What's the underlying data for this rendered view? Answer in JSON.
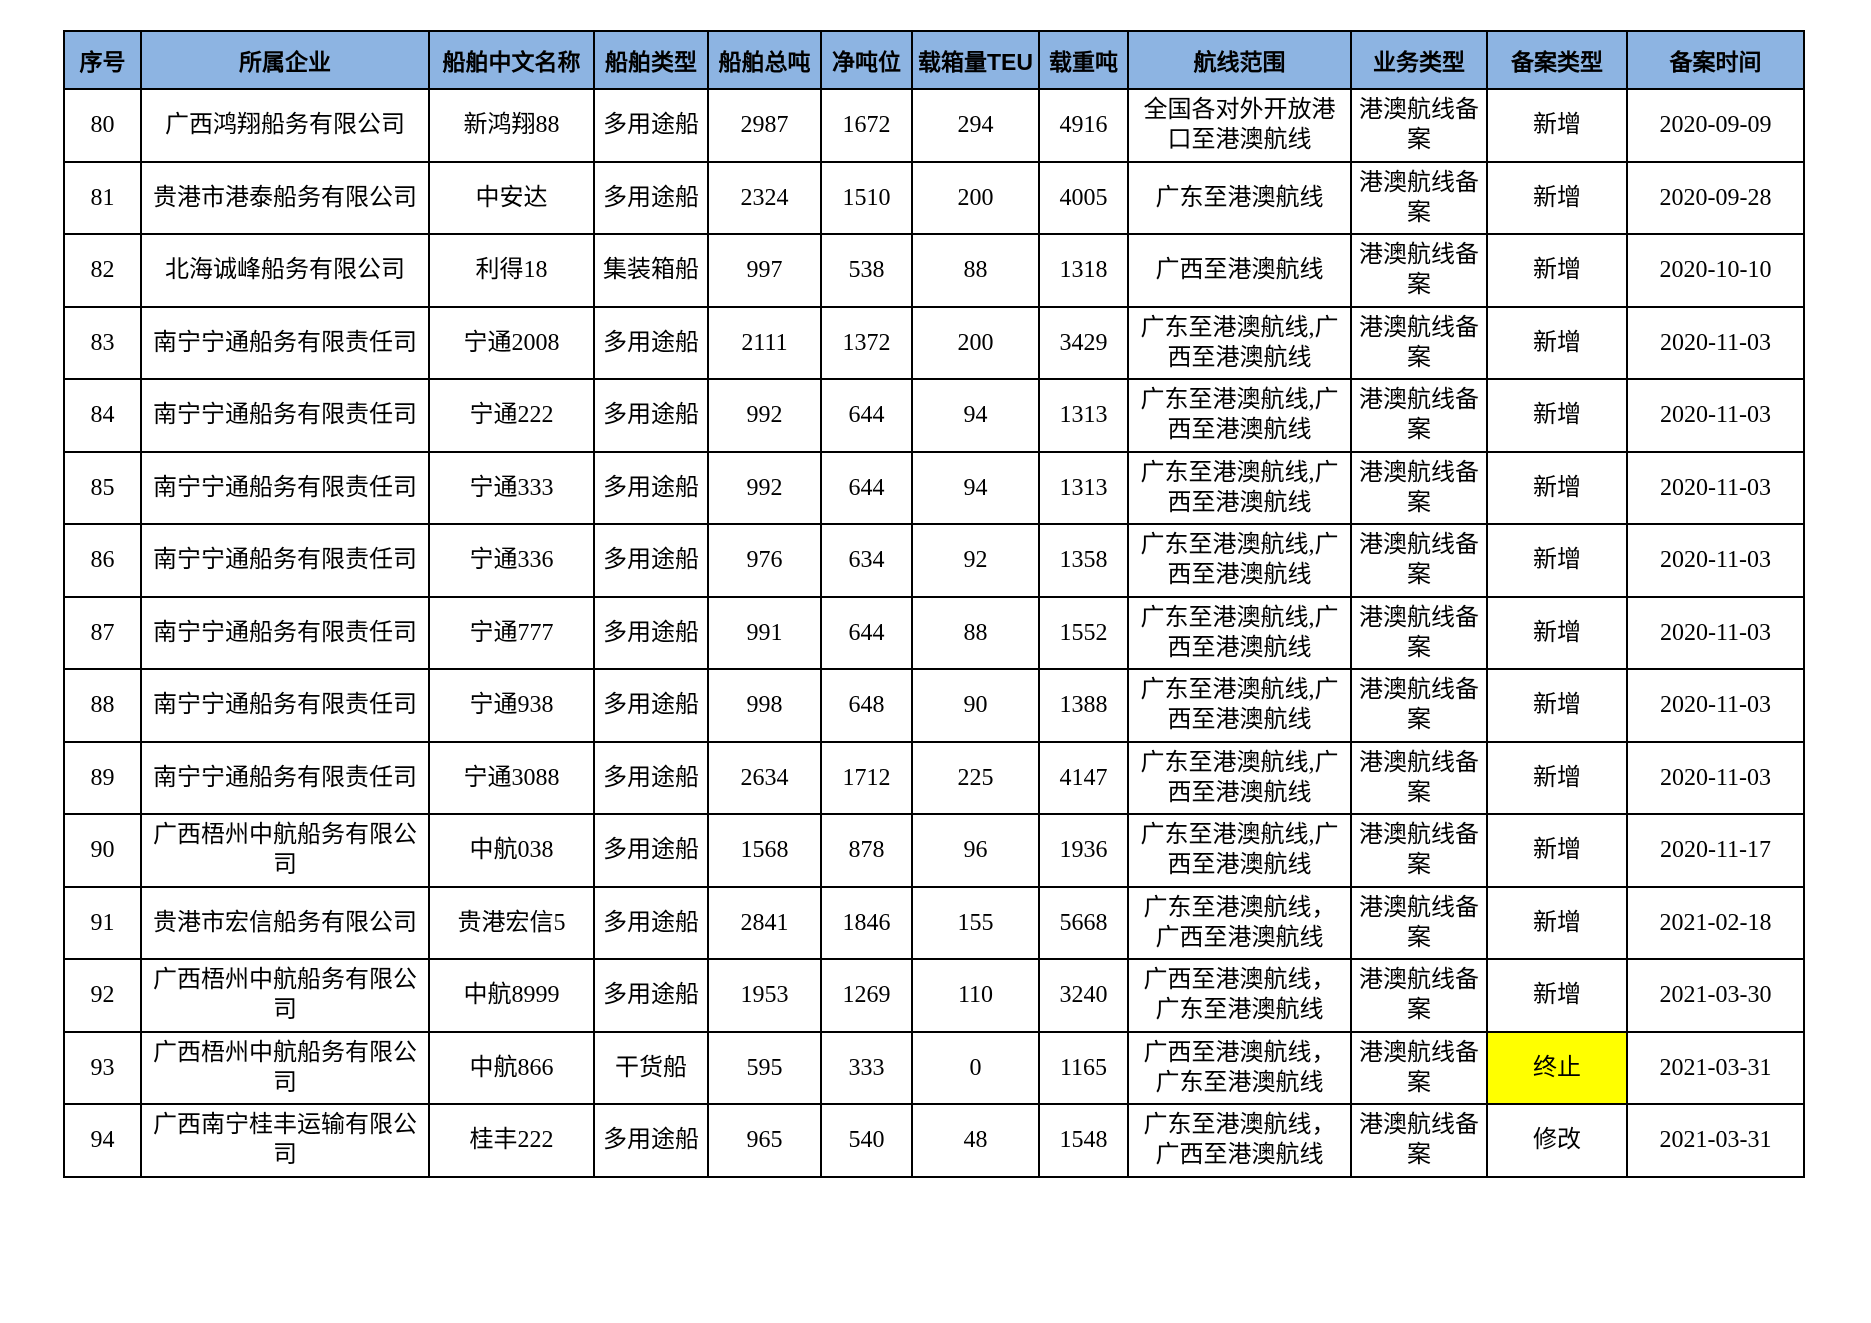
{
  "colors": {
    "header_bg": "#8DB4E2",
    "grid_line": "#000000",
    "highlight": "#FFFF00",
    "page_bg": "#FFFFFF"
  },
  "table": {
    "columns": [
      {
        "key": "seq",
        "label": "序号"
      },
      {
        "key": "company",
        "label": "所属企业"
      },
      {
        "key": "ship_name",
        "label": "船舶中文名称"
      },
      {
        "key": "ship_type",
        "label": "船舶类型"
      },
      {
        "key": "gross_tonnage",
        "label": "船舶总吨"
      },
      {
        "key": "net_tonnage",
        "label": "净吨位"
      },
      {
        "key": "teu",
        "label": "载箱量TEU"
      },
      {
        "key": "dwt",
        "label": "载重吨"
      },
      {
        "key": "route",
        "label": "航线范围"
      },
      {
        "key": "business_type",
        "label": "业务类型"
      },
      {
        "key": "filing_type",
        "label": "备案类型"
      },
      {
        "key": "filing_date",
        "label": "备案时间"
      }
    ],
    "rows": [
      {
        "seq": "80",
        "company": "广西鸿翔船务有限公司",
        "ship_name": "新鸿翔88",
        "ship_type": "多用途船",
        "gross_tonnage": "2987",
        "net_tonnage": "1672",
        "teu": "294",
        "dwt": "4916",
        "route": "全国各对外开放港\n口至港澳航线",
        "business_type": "港澳航线备案",
        "filing_type": "新增",
        "filing_type_highlight": false,
        "filing_date": "2020-09-09"
      },
      {
        "seq": "81",
        "company": "贵港市港泰船务有限公司",
        "ship_name": "中安达",
        "ship_type": "多用途船",
        "gross_tonnage": "2324",
        "net_tonnage": "1510",
        "teu": "200",
        "dwt": "4005",
        "route": "广东至港澳航线",
        "business_type": "港澳航线备案",
        "filing_type": "新增",
        "filing_type_highlight": false,
        "filing_date": "2020-09-28"
      },
      {
        "seq": "82",
        "company": "北海诚峰船务有限公司",
        "ship_name": "利得18",
        "ship_type": "集装箱船",
        "gross_tonnage": "997",
        "net_tonnage": "538",
        "teu": "88",
        "dwt": "1318",
        "route": "广西至港澳航线",
        "business_type": "港澳航线备案",
        "filing_type": "新增",
        "filing_type_highlight": false,
        "filing_date": "2020-10-10"
      },
      {
        "seq": "83",
        "company": "南宁宁通船务有限责任司",
        "ship_name": "宁通2008",
        "ship_type": "多用途船",
        "gross_tonnage": "2111",
        "net_tonnage": "1372",
        "teu": "200",
        "dwt": "3429",
        "route": "广东至港澳航线,广\n西至港澳航线",
        "business_type": "港澳航线备案",
        "filing_type": "新增",
        "filing_type_highlight": false,
        "filing_date": "2020-11-03"
      },
      {
        "seq": "84",
        "company": "南宁宁通船务有限责任司",
        "ship_name": "宁通222",
        "ship_type": "多用途船",
        "gross_tonnage": "992",
        "net_tonnage": "644",
        "teu": "94",
        "dwt": "1313",
        "route": "广东至港澳航线,广\n西至港澳航线",
        "business_type": "港澳航线备案",
        "filing_type": "新增",
        "filing_type_highlight": false,
        "filing_date": "2020-11-03"
      },
      {
        "seq": "85",
        "company": "南宁宁通船务有限责任司",
        "ship_name": "宁通333",
        "ship_type": "多用途船",
        "gross_tonnage": "992",
        "net_tonnage": "644",
        "teu": "94",
        "dwt": "1313",
        "route": "广东至港澳航线,广\n西至港澳航线",
        "business_type": "港澳航线备案",
        "filing_type": "新增",
        "filing_type_highlight": false,
        "filing_date": "2020-11-03"
      },
      {
        "seq": "86",
        "company": "南宁宁通船务有限责任司",
        "ship_name": "宁通336",
        "ship_type": "多用途船",
        "gross_tonnage": "976",
        "net_tonnage": "634",
        "teu": "92",
        "dwt": "1358",
        "route": "广东至港澳航线,广\n西至港澳航线",
        "business_type": "港澳航线备案",
        "filing_type": "新增",
        "filing_type_highlight": false,
        "filing_date": "2020-11-03"
      },
      {
        "seq": "87",
        "company": "南宁宁通船务有限责任司",
        "ship_name": "宁通777",
        "ship_type": "多用途船",
        "gross_tonnage": "991",
        "net_tonnage": "644",
        "teu": "88",
        "dwt": "1552",
        "route": "广东至港澳航线,广\n西至港澳航线",
        "business_type": "港澳航线备案",
        "filing_type": "新增",
        "filing_type_highlight": false,
        "filing_date": "2020-11-03"
      },
      {
        "seq": "88",
        "company": "南宁宁通船务有限责任司",
        "ship_name": "宁通938",
        "ship_type": "多用途船",
        "gross_tonnage": "998",
        "net_tonnage": "648",
        "teu": "90",
        "dwt": "1388",
        "route": "广东至港澳航线,广\n西至港澳航线",
        "business_type": "港澳航线备案",
        "filing_type": "新增",
        "filing_type_highlight": false,
        "filing_date": "2020-11-03"
      },
      {
        "seq": "89",
        "company": "南宁宁通船务有限责任司",
        "ship_name": "宁通3088",
        "ship_type": "多用途船",
        "gross_tonnage": "2634",
        "net_tonnage": "1712",
        "teu": "225",
        "dwt": "4147",
        "route": "广东至港澳航线,广\n西至港澳航线",
        "business_type": "港澳航线备案",
        "filing_type": "新增",
        "filing_type_highlight": false,
        "filing_date": "2020-11-03"
      },
      {
        "seq": "90",
        "company": "广西梧州中航船务有限公\n司",
        "ship_name": "中航038",
        "ship_type": "多用途船",
        "gross_tonnage": "1568",
        "net_tonnage": "878",
        "teu": "96",
        "dwt": "1936",
        "route": "广东至港澳航线,广\n西至港澳航线",
        "business_type": "港澳航线备案",
        "filing_type": "新增",
        "filing_type_highlight": false,
        "filing_date": "2020-11-17"
      },
      {
        "seq": "91",
        "company": "贵港市宏信船务有限公司",
        "ship_name": "贵港宏信5",
        "ship_type": "多用途船",
        "gross_tonnage": "2841",
        "net_tonnage": "1846",
        "teu": "155",
        "dwt": "5668",
        "route": "广东至港澳航线，\n广西至港澳航线",
        "business_type": "港澳航线备案",
        "filing_type": "新增",
        "filing_type_highlight": false,
        "filing_date": "2021-02-18"
      },
      {
        "seq": "92",
        "company": "广西梧州中航船务有限公\n司",
        "ship_name": "中航8999",
        "ship_type": "多用途船",
        "gross_tonnage": "1953",
        "net_tonnage": "1269",
        "teu": "110",
        "dwt": "3240",
        "route": "广西至港澳航线，\n广东至港澳航线",
        "business_type": "港澳航线备案",
        "filing_type": "新增",
        "filing_type_highlight": false,
        "filing_date": "2021-03-30"
      },
      {
        "seq": "93",
        "company": "广西梧州中航船务有限公\n司",
        "ship_name": "中航866",
        "ship_type": "干货船",
        "gross_tonnage": "595",
        "net_tonnage": "333",
        "teu": "0",
        "dwt": "1165",
        "route": "广西至港澳航线，\n广东至港澳航线",
        "business_type": "港澳航线备案",
        "filing_type": "终止",
        "filing_type_highlight": true,
        "filing_date": "2021-03-31"
      },
      {
        "seq": "94",
        "company": "广西南宁桂丰运输有限公\n司",
        "ship_name": "桂丰222",
        "ship_type": "多用途船",
        "gross_tonnage": "965",
        "net_tonnage": "540",
        "teu": "48",
        "dwt": "1548",
        "route": "广东至港澳航线，\n广西至港澳航线",
        "business_type": "港澳航线备案",
        "filing_type": "修改",
        "filing_type_highlight": false,
        "filing_date": "2021-03-31"
      }
    ]
  }
}
